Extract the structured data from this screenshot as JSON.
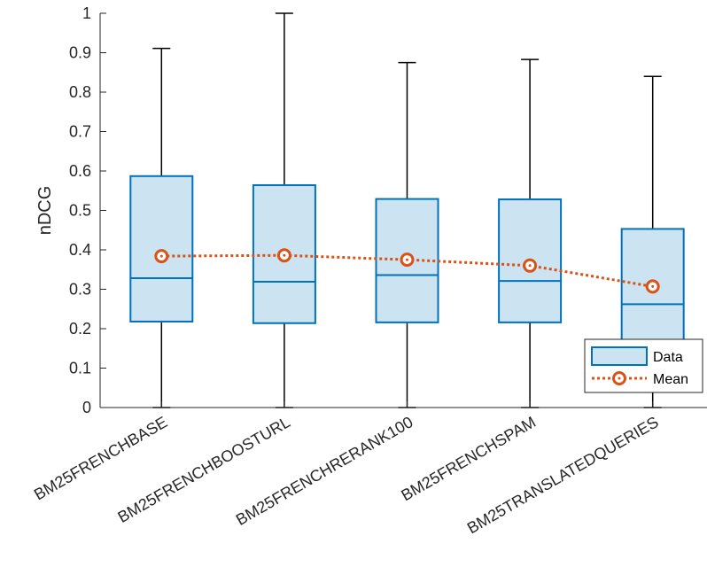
{
  "chart_data": {
    "type": "box",
    "title": "",
    "xlabel": "",
    "ylabel": "nDCG",
    "ylim": [
      0,
      1
    ],
    "yticks": [
      0,
      0.1,
      0.2,
      0.3,
      0.4,
      0.5,
      0.6,
      0.7,
      0.8,
      0.9,
      1
    ],
    "ytick_labels": [
      "0",
      "0.1",
      "0.2",
      "0.3",
      "0.4",
      "0.5",
      "0.6",
      "0.7",
      "0.8",
      "0.9",
      "1"
    ],
    "categories": [
      "BM25FRENCHBASE",
      "BM25FRENCHBOOSTURL",
      "BM25FRENCHRERANK100",
      "BM25FRENCHSPAM",
      "BM25TRANSLATEDQUERIES"
    ],
    "boxes": [
      {
        "min": 0,
        "q1": 0.218,
        "median": 0.328,
        "q3": 0.587,
        "max": 0.911
      },
      {
        "min": 0,
        "q1": 0.214,
        "median": 0.319,
        "q3": 0.564,
        "max": 1.0
      },
      {
        "min": 0,
        "q1": 0.216,
        "median": 0.336,
        "q3": 0.529,
        "max": 0.875
      },
      {
        "min": 0,
        "q1": 0.216,
        "median": 0.321,
        "q3": 0.528,
        "max": 0.883
      },
      {
        "min": 0,
        "q1": 0.118,
        "median": 0.262,
        "q3": 0.453,
        "max": 0.84
      }
    ],
    "series": [
      {
        "name": "Mean",
        "values": [
          0.384,
          0.386,
          0.375,
          0.36,
          0.307
        ]
      }
    ],
    "legend": {
      "position": "bottom-right",
      "entries": [
        "Data",
        "Mean"
      ]
    },
    "colors": {
      "box_fill": "#cce3f2",
      "box_edge": "#0072bd",
      "whisker": "#000000",
      "mean": "#d95319",
      "axis": "#262626"
    },
    "grid": false
  }
}
